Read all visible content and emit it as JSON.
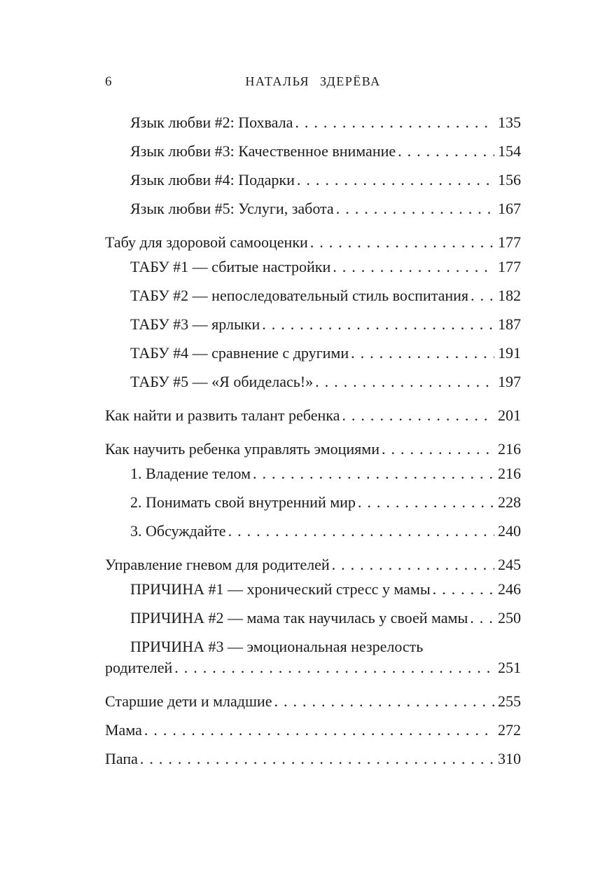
{
  "page": {
    "background": "#ffffff",
    "ink": "#1b1b1b",
    "number": "6",
    "running_title": "НАТАЛЬЯ ЗДЕРЁВА"
  },
  "toc": {
    "entries": [
      {
        "indent": 1,
        "gap": "first",
        "text": "Язык любви #2: Похвала",
        "page": "135"
      },
      {
        "indent": 1,
        "gap": "normal",
        "text": "Язык любви #3: Качественное внимание",
        "page": "154"
      },
      {
        "indent": 1,
        "gap": "normal",
        "text": "Язык любви #4: Подарки",
        "page": "156"
      },
      {
        "indent": 1,
        "gap": "normal",
        "text": "Язык любви #5: Услуги, забота",
        "page": "167"
      },
      {
        "indent": 0,
        "gap": "group",
        "text": "Табу для здоровой самооценки",
        "page": "177"
      },
      {
        "indent": 1,
        "gap": "sub",
        "text": "ТАБУ #1 — сбитые настройки",
        "page": "177"
      },
      {
        "indent": 1,
        "gap": "normal",
        "text": "ТАБУ #2 — непоследовательный стиль воспитания",
        "page": "182"
      },
      {
        "indent": 1,
        "gap": "normal",
        "text": "ТАБУ #3 — ярлыки",
        "page": "187"
      },
      {
        "indent": 1,
        "gap": "normal",
        "text": "ТАБУ #4 — сравнение с другими",
        "page": "191"
      },
      {
        "indent": 1,
        "gap": "normal",
        "text": "ТАБУ #5 — «Я обиделась!»",
        "page": "197"
      },
      {
        "indent": 0,
        "gap": "group",
        "text": "Как найти и развить талант ребенка",
        "page": "201"
      },
      {
        "indent": 0,
        "gap": "group",
        "text": "Как научить ребенка управлять эмоциями",
        "page": "216"
      },
      {
        "indent": 1,
        "gap": "sub",
        "text": "1. Владение телом",
        "page": "216"
      },
      {
        "indent": 1,
        "gap": "normal",
        "text": "2. Понимать свой внутренний мир",
        "page": "228"
      },
      {
        "indent": 1,
        "gap": "normal",
        "text": "3. Обсуждайте",
        "page": "240"
      },
      {
        "indent": 0,
        "gap": "group",
        "text": "Управление гневом для родителей",
        "page": "245"
      },
      {
        "indent": 1,
        "gap": "sub",
        "text": "ПРИЧИНА #1 — хронический стресс у мамы",
        "page": "246"
      },
      {
        "indent": 1,
        "gap": "normal",
        "text": "ПРИЧИНА #2 — мама так научилась у своей мамы",
        "page": "250"
      },
      {
        "indent": 1,
        "gap": "normal",
        "text": "ПРИЧИНА #3 — эмоциональная незрелость",
        "page": ""
      },
      {
        "indent": 0,
        "gap": "wrap",
        "text": "родителей",
        "page": "251"
      },
      {
        "indent": 0,
        "gap": "group",
        "text": "Старшие дети и младшие",
        "page": "255"
      },
      {
        "indent": 0,
        "gap": "normal",
        "text": "Мама",
        "page": "272"
      },
      {
        "indent": 0,
        "gap": "normal",
        "text": "Папа",
        "page": "310"
      }
    ]
  }
}
